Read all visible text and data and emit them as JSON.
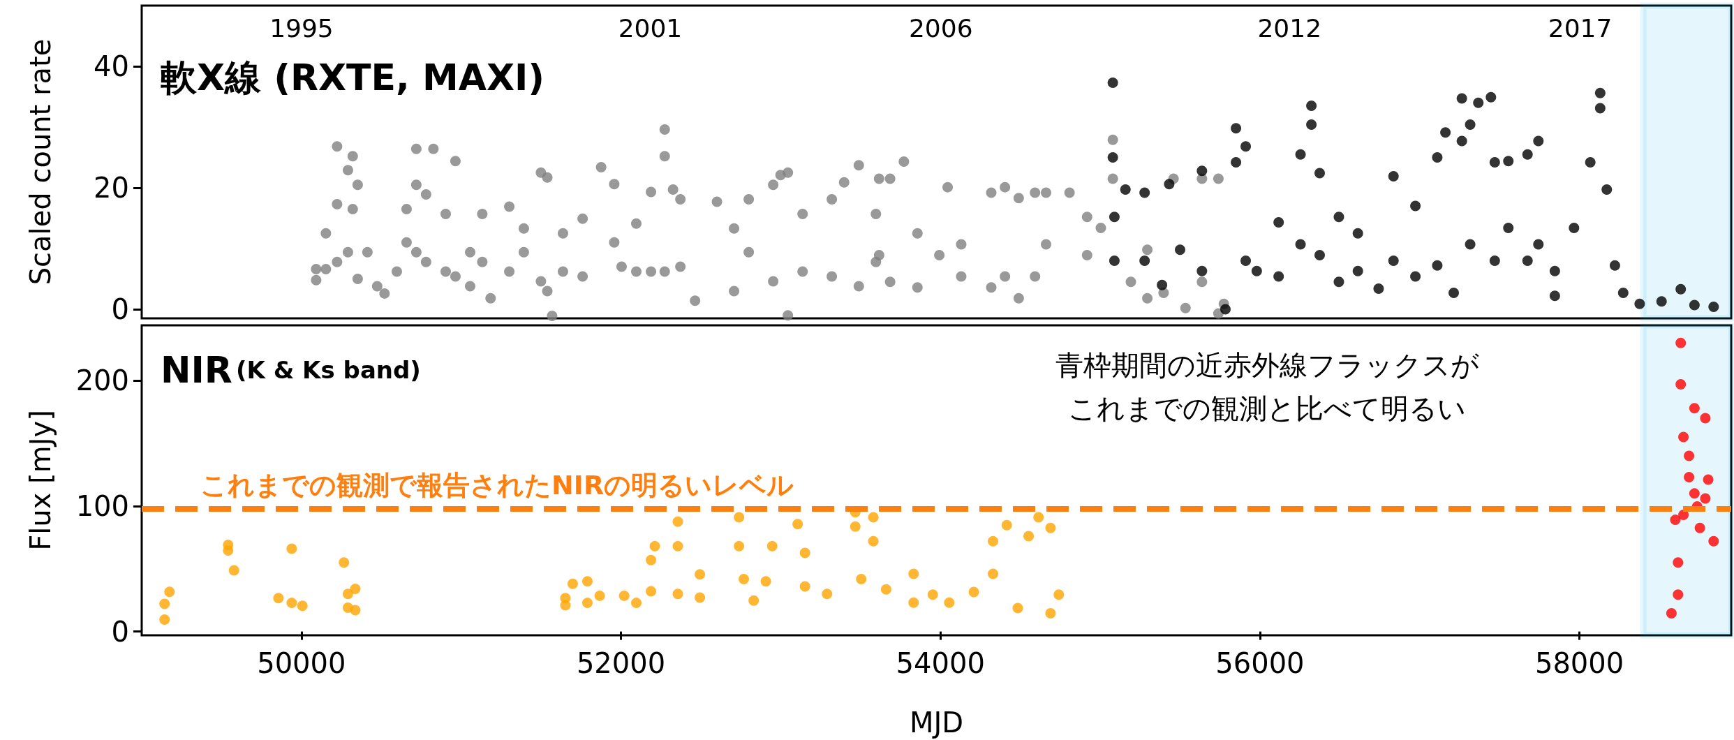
{
  "chart_data": [
    {
      "type": "scatter",
      "title": "軟X線 (RXTE, MAXI)",
      "ylabel": "Scaled count rate",
      "xlim": [
        49000,
        58950
      ],
      "ylim": [
        -1.5,
        50
      ],
      "yticks": [
        0,
        20,
        40
      ],
      "x2lim": [
        1992.25,
        2019.6
      ],
      "x2ticks": [
        1995,
        2001,
        2006,
        2012,
        2017
      ],
      "tick_labels": "y",
      "marker": "circle",
      "grid": false,
      "bands": [
        {
          "axis": "x",
          "from": 58400,
          "to": 58950,
          "color": "#00b0f0"
        }
      ],
      "series": [
        {
          "color": "#808080",
          "x": [
            50092,
            50092,
            50153,
            50153,
            50223,
            50223,
            50223,
            50291,
            50291,
            50321,
            50321,
            50352,
            50352,
            50413,
            50474,
            50520,
            50597,
            50658,
            50658,
            50719,
            50719,
            50719,
            50780,
            50780,
            50826,
            50903,
            50903,
            50964,
            50964,
            51056,
            51056,
            51132,
            51132,
            51184,
            51301,
            51301,
            51392,
            51392,
            51499,
            51499,
            51539,
            51539,
            51569,
            51637,
            51637,
            51760,
            51760,
            51876,
            51958,
            51958,
            52004,
            52096,
            52096,
            52188,
            52188,
            52274,
            52274,
            52274,
            52326,
            52372,
            52372,
            52464,
            52601,
            52708,
            52708,
            52800,
            52800,
            52953,
            52953,
            52999,
            53045,
            53045,
            53137,
            53137,
            53320,
            53320,
            53397,
            53489,
            53489,
            53596,
            53596,
            53616,
            53616,
            53685,
            53685,
            53771,
            53856,
            53856,
            53993,
            54045,
            54130,
            54130,
            54318,
            54318,
            54404,
            54404,
            54490,
            54490,
            54592,
            54592,
            54661,
            54661,
            54808,
            54918,
            54918,
            55004,
            55079,
            55079,
            55192,
            55295,
            55295,
            55397,
            55459,
            55534,
            55637,
            55637,
            55740,
            55740,
            55774
          ],
          "values": [
            4.8,
            6.6,
            12.5,
            6.6,
            26.8,
            17.3,
            7.8,
            22.9,
            9.4,
            25.2,
            16.5,
            5,
            20.5,
            9.4,
            3.8,
            2.6,
            6.2,
            16.5,
            11,
            26.4,
            20.5,
            9.4,
            18.9,
            7.8,
            26.4,
            15.7,
            6.2,
            24.4,
            5.4,
            9.4,
            3.8,
            15.7,
            7.8,
            1.8,
            16.9,
            6.2,
            13.3,
            9.4,
            22.5,
            4.6,
            21.7,
            3,
            -1.1,
            12.5,
            6.2,
            14.9,
            5.4,
            23.4,
            20.6,
            11,
            7,
            14.1,
            6.2,
            19.3,
            6.2,
            29.6,
            25.2,
            6.2,
            19.7,
            18.1,
            7,
            1.4,
            17.7,
            13.3,
            3,
            18.1,
            9.4,
            20.5,
            4.6,
            22.1,
            22.5,
            -1,
            15.7,
            6.2,
            18.1,
            5.4,
            20.9,
            23.7,
            3.8,
            15.7,
            7.8,
            21.5,
            8.9,
            21.5,
            4.5,
            24.3,
            12.5,
            3.6,
            8.9,
            20.1,
            10.7,
            5.4,
            19.2,
            3.6,
            20.1,
            5.4,
            18.3,
            1.8,
            19.2,
            5.4,
            19.2,
            10.7,
            19.2,
            15.2,
            8.9,
            13.4,
            27.9,
            21.5,
            4.5,
            9.8,
            1.8,
            2.7,
            21.5,
            0.2,
            4.5,
            21.5,
            21.5,
            -0.7,
            0.9
          ]
        },
        {
          "color": "#000000",
          "x": [
            55079,
            55079,
            55089,
            55089,
            55158,
            55278,
            55278,
            55387,
            55432,
            55500,
            55637,
            55637,
            55784,
            55850,
            55850,
            55911,
            55911,
            55980,
            56117,
            56117,
            56254,
            56254,
            56322,
            56322,
            56374,
            56374,
            56494,
            56494,
            56613,
            56613,
            56743,
            56836,
            56836,
            56973,
            56973,
            57110,
            57110,
            57161,
            57213,
            57264,
            57264,
            57316,
            57316,
            57367,
            57446,
            57470,
            57470,
            57555,
            57555,
            57675,
            57675,
            57743,
            57743,
            57846,
            57846,
            57966,
            58068,
            58130,
            58130,
            58171,
            58222,
            58274,
            58377,
            58514,
            58634,
            58720,
            58840
          ],
          "values": [
            37.3,
            25,
            15.2,
            8,
            19.7,
            19.2,
            8,
            4,
            20.6,
            9.8,
            22.8,
            6.3,
            0,
            29.8,
            24.2,
            26.8,
            8,
            6.3,
            14.3,
            5.4,
            25.5,
            10.7,
            33.5,
            30.4,
            22.4,
            8.9,
            15.2,
            4.5,
            12.5,
            6.3,
            3.4,
            21.9,
            8,
            17,
            5.4,
            25,
            7.2,
            29.1,
            2.7,
            34.7,
            27.7,
            30.4,
            10.7,
            34,
            34.9,
            24.2,
            8,
            24.4,
            13.4,
            25.5,
            8,
            27.7,
            10.7,
            2.2,
            6.3,
            13.4,
            24.2,
            35.6,
            33.1,
            19.7,
            7.2,
            2.7,
            0.9,
            1.3,
            3.3,
            0.7,
            0.4
          ]
        }
      ]
    },
    {
      "type": "scatter",
      "title": "NIR",
      "subtitle": "(K & Ks band)",
      "xlabel": "MJD",
      "ylabel": "Flux [mJy]",
      "xlim": [
        49000,
        58950
      ],
      "xticks": [
        50000,
        52000,
        54000,
        56000,
        58000
      ],
      "ylim": [
        -3,
        244
      ],
      "yticks": [
        0,
        100,
        200
      ],
      "marker": "circle",
      "grid": false,
      "annotations": [
        "青枠期間の近赤外線フラックスが",
        "これまでの観測と比べて明るい"
      ],
      "ref_lines": [
        {
          "axis": "y",
          "value": 98,
          "label": "これまでの観測で報告されたNIRの明るいレベル",
          "color": "#ff7f0e",
          "line_style": "dashed"
        }
      ],
      "bands": [
        {
          "axis": "x",
          "from": 58400,
          "to": 58950,
          "color": "#00b0f0"
        }
      ],
      "series": [
        {
          "color": "#ffa500",
          "x": [
            49143,
            49143,
            49174,
            49541,
            49541,
            49578,
            49856,
            49939,
            49939,
            50006,
            50266,
            50291,
            50291,
            50337,
            50337,
            51652,
            51652,
            51698,
            51790,
            51790,
            51867,
            52020,
            52096,
            52188,
            52188,
            52212,
            52356,
            52356,
            52356,
            52494,
            52494,
            52739,
            52739,
            52769,
            52831,
            52907,
            52947,
            53106,
            53152,
            53152,
            53290,
            53467,
            53467,
            53504,
            53580,
            53580,
            53660,
            53832,
            53832,
            53952,
            54055,
            54209,
            54329,
            54329,
            54415,
            54484,
            54552,
            54614,
            54689,
            54689,
            54741
          ],
          "values": [
            9.5,
            22,
            31.6,
            69,
            64.6,
            48.7,
            26.6,
            66,
            22.8,
            20.5,
            55,
            30,
            19,
            34,
            17,
            26.6,
            20.9,
            38,
            40,
            22.8,
            28.5,
            28.5,
            22.8,
            57,
            32,
            68,
            87.5,
            68,
            30,
            45.6,
            27,
            91,
            68,
            41.8,
            24.7,
            40,
            68,
            85.6,
            62.7,
            36,
            30,
            95,
            83.7,
            41.8,
            91,
            72,
            33.6,
            46,
            23,
            29.4,
            23,
            31.5,
            72,
            46,
            84.7,
            18.7,
            76,
            91,
            14.5,
            82.5,
            29.4
          ]
        },
        {
          "color": "#ff0000",
          "x": [
            58576,
            58600,
            58617,
            58617,
            58634,
            58634,
            58651,
            58651,
            58686,
            58686,
            58720,
            58720,
            58737,
            58754,
            58788,
            58788,
            58806,
            58840
          ],
          "values": [
            14.5,
            89,
            29.4,
            55,
            230,
            197,
            155,
            93,
            140,
            123,
            178,
            110,
            99.6,
            82.5,
            170,
            106,
            121,
            72
          ]
        }
      ]
    }
  ]
}
